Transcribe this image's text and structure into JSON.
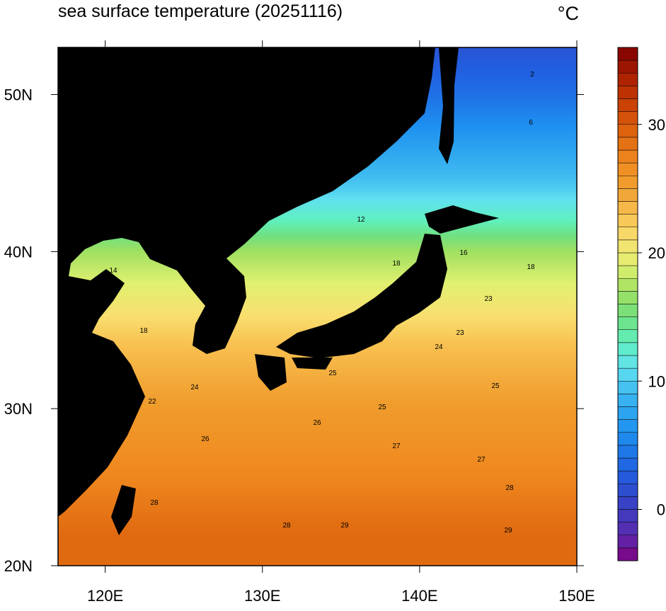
{
  "header": {
    "title": "sea surface temperature (20251116)",
    "unit": "°C"
  },
  "map": {
    "lon_range": [
      117,
      150
    ],
    "lat_range": [
      20,
      53
    ],
    "lon_ticks": [
      {
        "value": 120,
        "label": "120E"
      },
      {
        "value": 130,
        "label": "130E"
      },
      {
        "value": 140,
        "label": "140E"
      },
      {
        "value": 150,
        "label": "150E"
      }
    ],
    "lat_ticks": [
      {
        "value": 20,
        "label": "20N"
      },
      {
        "value": 30,
        "label": "30N"
      },
      {
        "value": 40,
        "label": "40N"
      },
      {
        "value": 50,
        "label": "50N"
      }
    ],
    "contour_labels": [
      "14",
      "18",
      "12",
      "16",
      "18",
      "18",
      "23",
      "23",
      "24",
      "25",
      "25",
      "25",
      "26",
      "26",
      "27",
      "27",
      "28",
      "28",
      "28",
      "29",
      "29",
      "2",
      "6",
      "22",
      "24"
    ]
  },
  "colorbar": {
    "range": [
      -4,
      36
    ],
    "ticks": [
      0,
      10,
      20,
      30
    ]
  }
}
